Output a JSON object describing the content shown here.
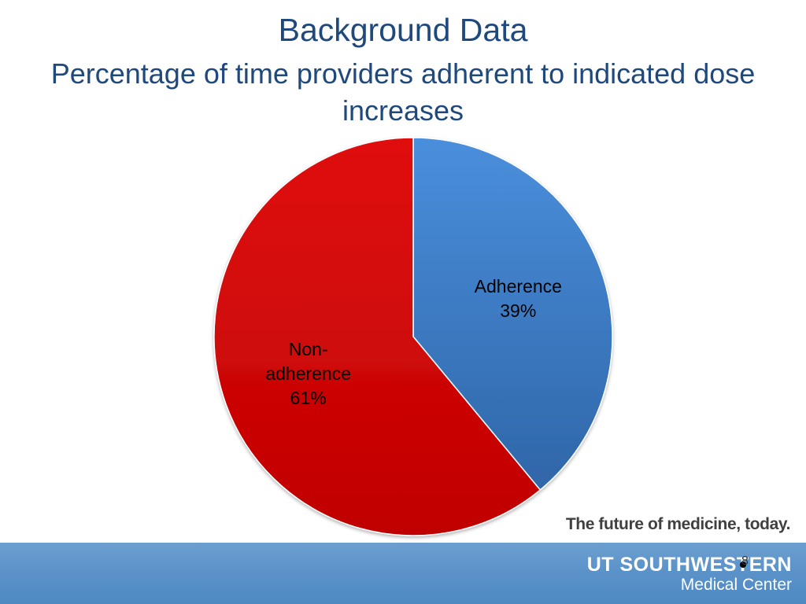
{
  "slide": {
    "title": "Background Data",
    "subtitle": "Percentage of time providers adherent to indicated dose increases",
    "tagline": "The future of medicine, today.",
    "brand_name": "UT SOUTHWESTERN",
    "brand_sub": "Medical Center",
    "page_number": "8"
  },
  "chart_data": {
    "type": "pie",
    "title": "Percentage of time providers adherent to indicated dose increases",
    "slices": [
      {
        "name": "Adherence",
        "label_lines": [
          "Adherence",
          "39%"
        ],
        "value": 39,
        "color": "#3a7cc8"
      },
      {
        "name": "Non-adherence",
        "label_lines": [
          "Non-",
          "adherence",
          "61%"
        ],
        "value": 61,
        "color": "#cc0000"
      }
    ],
    "start_angle": "12 o'clock",
    "direction": "clockwise",
    "legend": "none",
    "data_labels": "inside"
  },
  "colors": {
    "title": "#1f497d",
    "footer_bar": "#5b93c9"
  }
}
